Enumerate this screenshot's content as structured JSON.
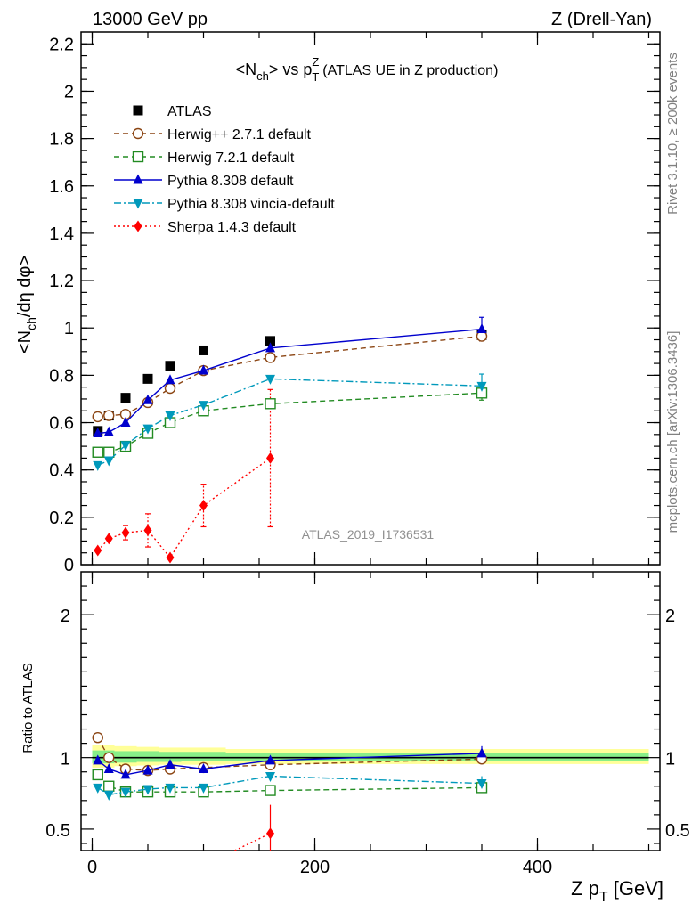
{
  "header": {
    "left": "13000 GeV pp",
    "right": "Z (Drell-Yan)"
  },
  "side": {
    "rivet": "Rivet 3.1.10, ≥ 200k events",
    "mcplots": "mcplots.cern.ch [arXiv:1306.3436]"
  },
  "chart_data": [
    {
      "type": "scatter",
      "panel": "main",
      "title": "<N_ch> vs p_T^Z (ATLAS UE in Z production)",
      "ylabel": "<N_ch/dη dφ>",
      "watermark": "ATLAS_2019_I1736531",
      "xlim": [
        -10,
        510
      ],
      "ylim": [
        0,
        2.25
      ],
      "yticks": [
        {
          "v": 0,
          "label": "0"
        },
        {
          "v": 0.2,
          "label": "0.2"
        },
        {
          "v": 0.4,
          "label": "0.4"
        },
        {
          "v": 0.6,
          "label": "0.6"
        },
        {
          "v": 0.8,
          "label": "0.8"
        },
        {
          "v": 1.0,
          "label": "1"
        },
        {
          "v": 1.2,
          "label": "1.2"
        },
        {
          "v": 1.4,
          "label": "1.4"
        },
        {
          "v": 1.6,
          "label": "1.6"
        },
        {
          "v": 1.8,
          "label": "1.8"
        },
        {
          "v": 2.0,
          "label": "2"
        },
        {
          "v": 2.2,
          "label": "2.2"
        }
      ],
      "legend_position": "top-left",
      "x": [
        5,
        15,
        30,
        50,
        70,
        100,
        160,
        350
      ],
      "series": [
        {
          "name": "ATLAS",
          "color": "#000000",
          "marker": "square-filled",
          "line": "none",
          "values": [
            0.565,
            0.63,
            0.705,
            0.785,
            0.84,
            0.905,
            0.945,
            0.97
          ]
        },
        {
          "name": "Herwig++ 2.7.1 default",
          "color": "#8b4513",
          "marker": "circle-open",
          "line": "dashed",
          "values": [
            0.625,
            0.63,
            0.635,
            0.685,
            0.745,
            0.82,
            0.875,
            0.965
          ]
        },
        {
          "name": "Herwig 7.2.1 default",
          "color": "#228b22",
          "marker": "square-open",
          "line": "dashed",
          "values": [
            0.475,
            0.475,
            0.5,
            0.555,
            0.6,
            0.65,
            0.68,
            0.725
          ]
        },
        {
          "name": "Pythia 8.308 default",
          "color": "#0000cd",
          "marker": "triangle-up-filled",
          "line": "solid",
          "values": [
            0.555,
            0.56,
            0.6,
            0.695,
            0.78,
            0.82,
            0.915,
            0.995
          ]
        },
        {
          "name": "Pythia 8.308 vincia-default",
          "color": "#0099bb",
          "marker": "triangle-down-filled",
          "line": "dashdot",
          "values": [
            0.42,
            0.44,
            0.505,
            0.575,
            0.63,
            0.675,
            0.785,
            0.755
          ]
        },
        {
          "name": "Sherpa 1.4.3 default",
          "color": "#ff0000",
          "marker": "diamond-filled",
          "line": "dotted",
          "values": [
            0.06,
            0.11,
            0.135,
            0.145,
            0.03,
            0.25,
            0.45,
            null
          ]
        }
      ]
    },
    {
      "type": "scatter",
      "panel": "ratio",
      "ylabel": "Ratio to ATLAS",
      "xlabel": "Z p_T [GeV]",
      "xlim": [
        -10,
        510
      ],
      "ylim": [
        0.35,
        2.3
      ],
      "xticks": [
        {
          "v": 0,
          "label": "0"
        },
        {
          "v": 200,
          "label": "200"
        },
        {
          "v": 400,
          "label": "400"
        }
      ],
      "yticks": [
        {
          "v": 0.5,
          "label": "0.5"
        },
        {
          "v": 1.0,
          "label": "1"
        },
        {
          "v": 2.0,
          "label": "2"
        }
      ],
      "reference": 1.0,
      "x": [
        5,
        15,
        30,
        50,
        70,
        100,
        160,
        350
      ],
      "series": [
        {
          "name": "Herwig++ 2.7.1 default",
          "values": [
            1.14,
            1.0,
            0.92,
            0.91,
            0.92,
            0.93,
            0.95,
            0.99
          ]
        },
        {
          "name": "Herwig 7.2.1 default",
          "values": [
            0.88,
            0.8,
            0.76,
            0.76,
            0.76,
            0.76,
            0.77,
            0.79
          ]
        },
        {
          "name": "Pythia 8.308 default",
          "values": [
            0.98,
            0.92,
            0.88,
            0.91,
            0.95,
            0.92,
            0.98,
            1.03
          ]
        },
        {
          "name": "Pythia 8.308 vincia-default",
          "values": [
            0.79,
            0.74,
            0.76,
            0.78,
            0.79,
            0.79,
            0.87,
            0.82
          ]
        },
        {
          "name": "Sherpa 1.4.3 default",
          "values": [
            null,
            null,
            null,
            null,
            null,
            null,
            0.47,
            null
          ]
        }
      ]
    }
  ]
}
